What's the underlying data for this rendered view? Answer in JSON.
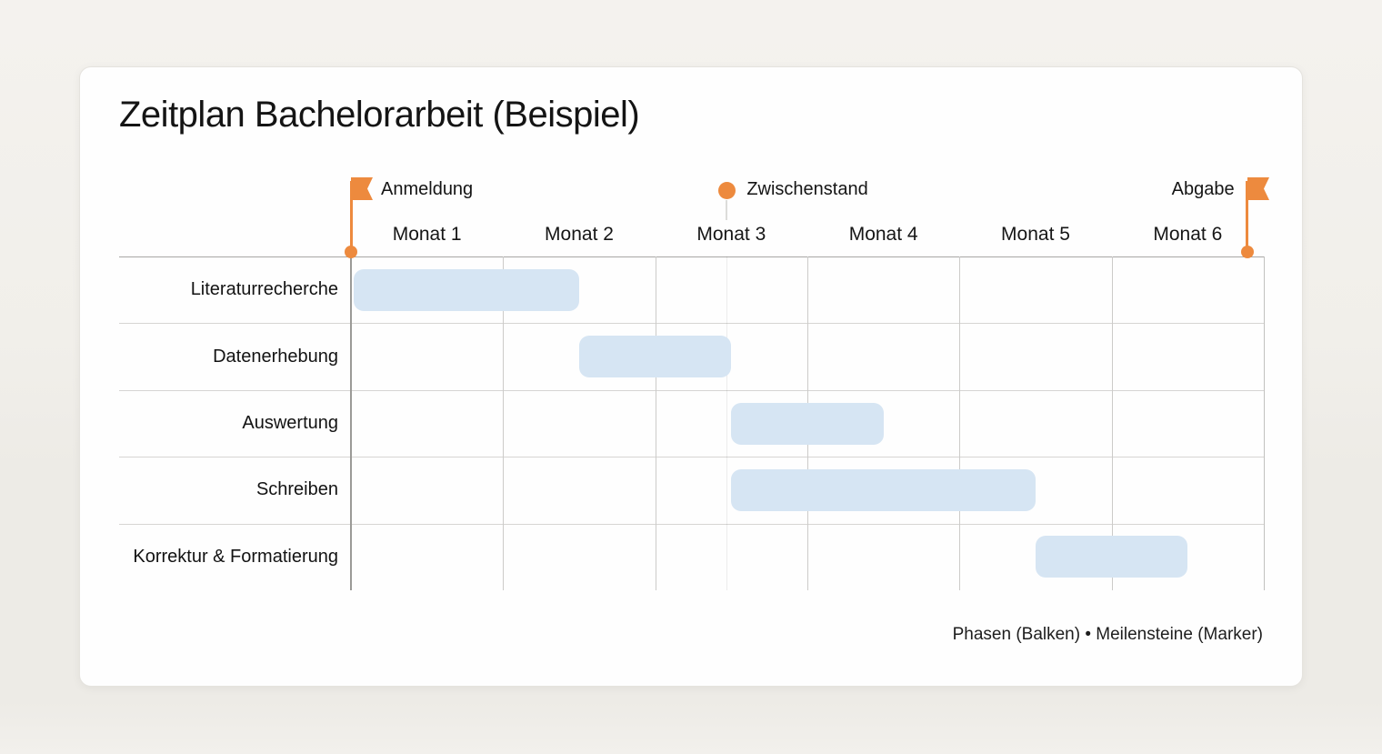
{
  "title": "Zeitplan Bachelorarbeit (Beispiel)",
  "legend": "Phasen (Balken) • Meilensteine (Marker)",
  "chart_data": {
    "type": "gantt",
    "title": "Zeitplan Bachelorarbeit (Beispiel)",
    "x_unit": "Monat",
    "x_range": [
      0,
      6
    ],
    "month_labels": [
      "Monat 1",
      "Monat 2",
      "Monat 3",
      "Monat 4",
      "Monat 5",
      "Monat 6"
    ],
    "tasks": [
      {
        "label": "Literaturrecherche",
        "start": 0,
        "end": 1.5
      },
      {
        "label": "Datenerhebung",
        "start": 1.5,
        "end": 2.5
      },
      {
        "label": "Auswertung",
        "start": 2.5,
        "end": 3.5
      },
      {
        "label": "Schreiben",
        "start": 2.5,
        "end": 4.5
      },
      {
        "label": "Korrektur & Formatierung",
        "start": 4.5,
        "end": 5.5
      }
    ],
    "milestones": [
      {
        "label": "Anmeldung",
        "position": 0,
        "marker": "flag",
        "label_side": "right",
        "guide_line": false
      },
      {
        "label": "Zwischenstand",
        "position": 2.47,
        "marker": "circle",
        "label_side": "right",
        "guide_line": true
      },
      {
        "label": "Abgabe",
        "position": 5.89,
        "marker": "flag",
        "label_side": "left",
        "guide_line": false
      }
    ],
    "legend": "Phasen (Balken) • Meilensteine (Marker)",
    "grid": true,
    "colors": {
      "bar": "#D6E5F3",
      "milestone": "#ED8A3E"
    }
  }
}
